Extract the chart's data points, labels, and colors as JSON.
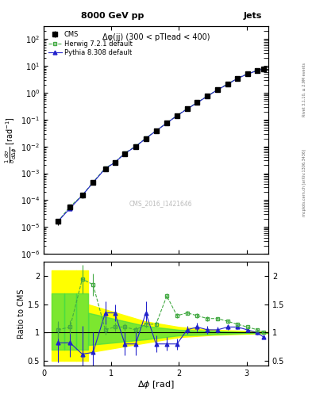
{
  "title": "8000 GeV pp",
  "title_right": "Jets",
  "annotation": "Δφ(jj) (300 < pTlead < 400)",
  "watermark": "CMS_2016_I1421646",
  "rivet_label": "Rivet 3.1.10, ≥ 2.9M events",
  "mcplots_label": "mcplots.cern.ch [arXiv:1306.3436]",
  "ylabel_main": "$\\frac{1}{\\sigma}\\frac{d\\sigma}{d\\Delta\\phi}$ [rad$^{-1}$]",
  "ylabel_ratio": "Ratio to CMS",
  "xlabel": "$\\Delta\\phi$ [rad]",
  "xlim": [
    0.0,
    3.32
  ],
  "ylim_main": [
    1e-06,
    300.0
  ],
  "ylim_ratio": [
    0.42,
    2.25
  ],
  "cms_x": [
    0.21,
    0.39,
    0.57,
    0.73,
    0.91,
    1.05,
    1.2,
    1.36,
    1.51,
    1.66,
    1.82,
    1.97,
    2.12,
    2.27,
    2.42,
    2.57,
    2.72,
    2.86,
    3.01,
    3.16,
    3.25
  ],
  "cms_y": [
    1.6e-05,
    5.5e-05,
    0.00015,
    0.00045,
    0.0015,
    0.0025,
    0.0055,
    0.01,
    0.02,
    0.038,
    0.075,
    0.14,
    0.25,
    0.43,
    0.75,
    1.3,
    2.1,
    3.4,
    5.0,
    6.8,
    7.8
  ],
  "cms_yerr": [
    4e-06,
    1e-05,
    3e-05,
    8e-05,
    0.0002,
    0.0004,
    0.0008,
    0.0015,
    0.003,
    0.006,
    0.012,
    0.022,
    0.035,
    0.06,
    0.1,
    0.18,
    0.3,
    0.5,
    0.7,
    0.9,
    1.0
  ],
  "herwig_x": [
    0.21,
    0.39,
    0.57,
    0.73,
    0.91,
    1.05,
    1.2,
    1.36,
    1.51,
    1.66,
    1.82,
    1.97,
    2.12,
    2.27,
    2.42,
    2.57,
    2.72,
    2.86,
    3.01,
    3.16,
    3.25
  ],
  "herwig_y": [
    1.6e-05,
    5.8e-05,
    0.00015,
    0.00047,
    0.00155,
    0.00255,
    0.0057,
    0.0102,
    0.0205,
    0.0385,
    0.076,
    0.142,
    0.255,
    0.44,
    0.76,
    1.32,
    2.15,
    3.45,
    5.1,
    6.9,
    7.9
  ],
  "pythia_x": [
    0.21,
    0.39,
    0.57,
    0.73,
    0.91,
    1.05,
    1.2,
    1.36,
    1.51,
    1.66,
    1.82,
    1.97,
    2.12,
    2.27,
    2.42,
    2.57,
    2.72,
    2.86,
    3.01,
    3.16,
    3.25
  ],
  "pythia_y": [
    1.6e-05,
    5e-05,
    0.00015,
    0.00045,
    0.0015,
    0.0025,
    0.0055,
    0.01,
    0.02,
    0.038,
    0.075,
    0.14,
    0.25,
    0.43,
    0.75,
    1.3,
    2.1,
    3.4,
    5.0,
    6.8,
    7.8
  ],
  "herwig_ratio": [
    1.05,
    1.1,
    1.95,
    1.85,
    1.05,
    1.1,
    1.1,
    1.05,
    1.15,
    1.15,
    1.65,
    1.3,
    1.35,
    1.3,
    1.25,
    1.25,
    1.2,
    1.15,
    1.1,
    1.05,
    1.01
  ],
  "pythia_ratio": [
    0.82,
    0.82,
    0.62,
    0.65,
    1.35,
    1.35,
    0.8,
    0.8,
    1.35,
    0.8,
    0.8,
    0.8,
    1.05,
    1.1,
    1.05,
    1.05,
    1.1,
    1.1,
    1.05,
    1.0,
    0.92
  ],
  "herwig_ratio_err": [
    0.15,
    0.12,
    0.25,
    0.2,
    0.08,
    0.08,
    0.06,
    0.05,
    0.06,
    0.05,
    0.05,
    0.04,
    0.04,
    0.04,
    0.04,
    0.03,
    0.03,
    0.02,
    0.02,
    0.02,
    0.02
  ],
  "pythia_ratio_err": [
    0.35,
    0.25,
    0.5,
    0.35,
    0.2,
    0.15,
    0.2,
    0.2,
    0.2,
    0.15,
    0.12,
    0.1,
    0.07,
    0.08,
    0.07,
    0.06,
    0.05,
    0.04,
    0.03,
    0.03,
    0.03
  ],
  "cms_color": "black",
  "herwig_color": "#44aa44",
  "pythia_color": "#2222cc",
  "yellow_band_xlo": [
    0.12,
    0.3,
    0.48
  ],
  "yellow_band_xhi": [
    0.3,
    0.48,
    0.66
  ],
  "yellow_band_low": [
    0.5,
    0.5,
    0.5
  ],
  "yellow_band_high": [
    2.1,
    2.1,
    2.1
  ],
  "green_band_xlo": [
    0.12,
    0.3,
    0.48
  ],
  "green_band_xhi": [
    0.3,
    0.48,
    0.66
  ],
  "green_band_low": [
    0.7,
    0.7,
    0.7
  ],
  "green_band_high": [
    1.7,
    1.7,
    1.7
  ],
  "yellow_band2_x": [
    0.66,
    1.5,
    2.0,
    2.5,
    3.0,
    3.32
  ],
  "yellow_band2_low": [
    0.65,
    0.82,
    0.92,
    0.96,
    0.98,
    0.99
  ],
  "yellow_band2_high": [
    1.5,
    1.2,
    1.1,
    1.05,
    1.03,
    1.01
  ],
  "green_band2_x": [
    0.66,
    1.5,
    2.0,
    2.5,
    3.0,
    3.32
  ],
  "green_band2_low": [
    0.78,
    0.88,
    0.95,
    0.97,
    0.99,
    0.995
  ],
  "green_band2_high": [
    1.35,
    1.12,
    1.05,
    1.03,
    1.01,
    1.005
  ]
}
